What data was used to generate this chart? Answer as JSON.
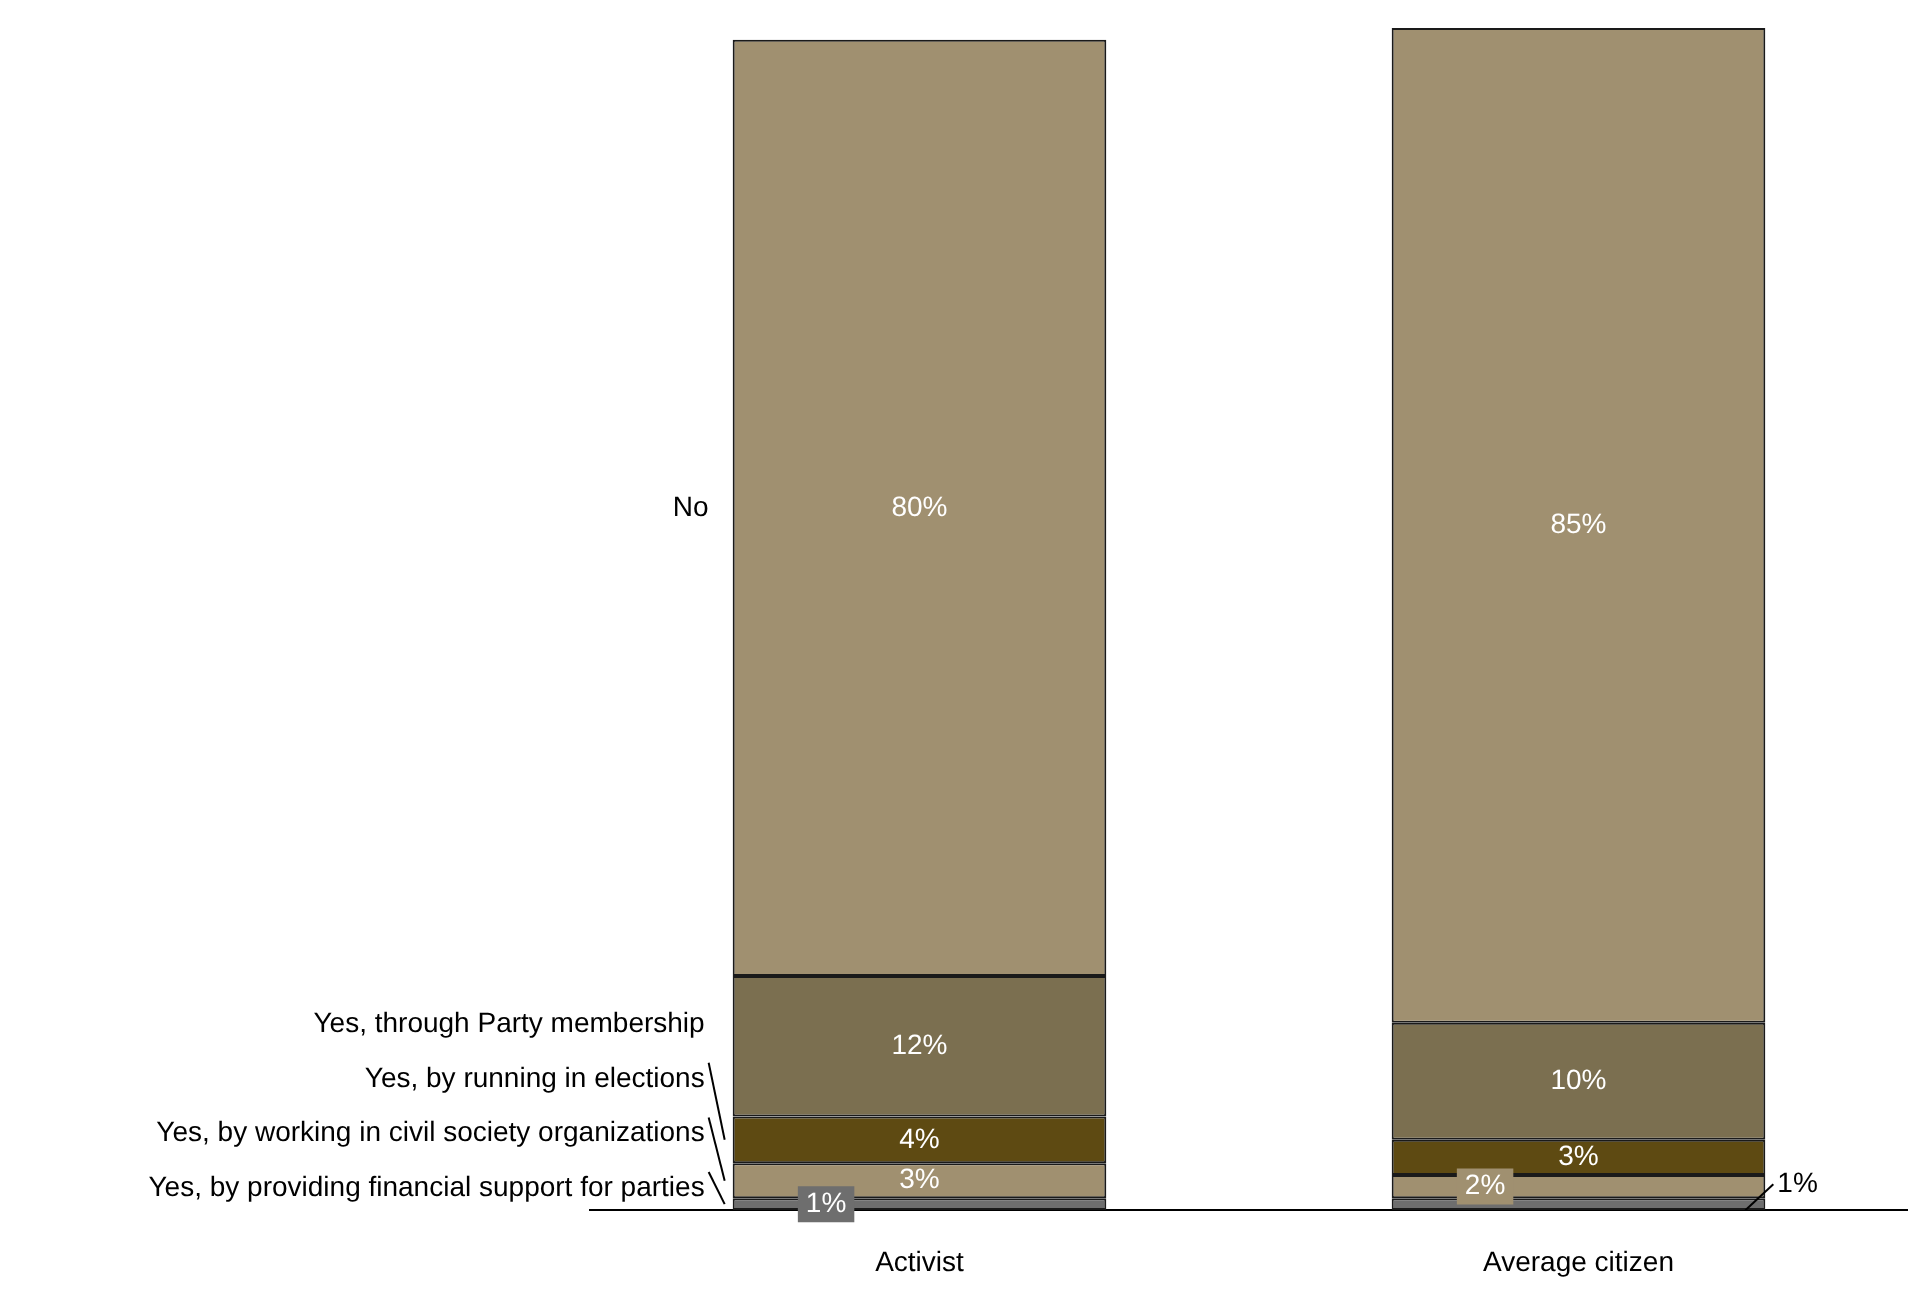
{
  "chart_data": {
    "type": "bar",
    "stacked": true,
    "legend": false,
    "grid": false,
    "categories": [
      "Activist",
      "Average citizen"
    ],
    "series": [
      {
        "name": "Yes, by providing financial support for parties",
        "color": "#6e6e6e",
        "values": [
          1,
          1
        ],
        "value_labels": [
          "1%",
          "1%"
        ]
      },
      {
        "name": "Yes, by working in civil society organizations",
        "color": "#a09070",
        "values": [
          3,
          2
        ],
        "value_labels": [
          "3%",
          "2%"
        ]
      },
      {
        "name": "Yes, by running in elections",
        "color": "#5e4a12",
        "values": [
          4,
          3
        ],
        "value_labels": [
          "4%",
          "3%"
        ]
      },
      {
        "name": "Yes, through Party membership",
        "color": "#7b6f50",
        "values": [
          12,
          10
        ],
        "value_labels": [
          "12%",
          "10%"
        ]
      },
      {
        "name": "No",
        "color": "#a09070",
        "values": [
          80,
          85
        ],
        "value_labels": [
          "80%",
          "85%"
        ]
      }
    ]
  }
}
